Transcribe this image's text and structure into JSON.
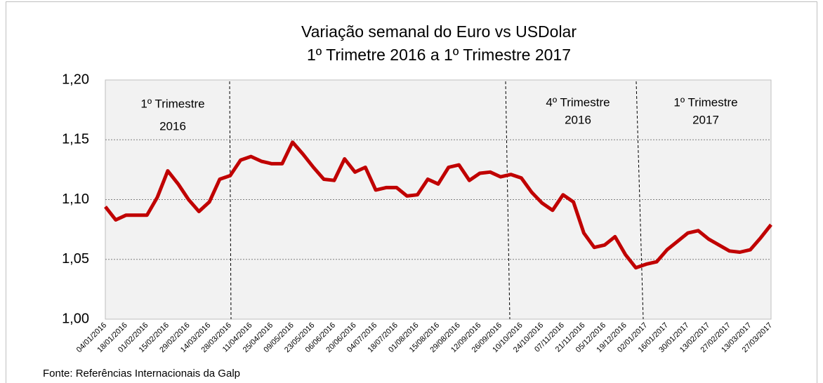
{
  "chart_data": {
    "type": "line",
    "title": "Variação semanal do Euro vs USDolar",
    "subtitle": "1º Trimetre 2016 a 1º Trimestre 2017",
    "categories": [
      "04/01/2016",
      null,
      "18/01/2016",
      null,
      "01/02/2016",
      null,
      "15/02/2016",
      null,
      "29/02/2016",
      null,
      "14/03/2016",
      null,
      "28/03/2016",
      null,
      "11/04/2016",
      null,
      "25/04/2016",
      null,
      "09/05/2016",
      null,
      "23/05/2016",
      null,
      "06/06/2016",
      null,
      "20/06/2016",
      null,
      "04/07/2016",
      null,
      "18/07/2016",
      null,
      "01/08/2016",
      null,
      "15/08/2016",
      null,
      "29/08/2016",
      null,
      "12/09/2016",
      null,
      "26/09/2016",
      null,
      "10/10/2016",
      null,
      "24/10/2016",
      null,
      "07/11/2016",
      null,
      "21/11/2016",
      null,
      "05/12/2016",
      null,
      "19/12/2016",
      null,
      "02/01/2017",
      null,
      "16/01/2017",
      null,
      "30/01/2017",
      null,
      "13/02/2017",
      null,
      "27/02/2017",
      null,
      "13/03/2017",
      null,
      "27/03/2017"
    ],
    "values": [
      1.094,
      1.083,
      1.087,
      1.087,
      1.087,
      1.102,
      1.124,
      1.113,
      1.1,
      1.09,
      1.098,
      1.117,
      1.12,
      1.133,
      1.136,
      1.132,
      1.13,
      1.13,
      1.148,
      1.138,
      1.127,
      1.117,
      1.116,
      1.134,
      1.123,
      1.127,
      1.108,
      1.11,
      1.11,
      1.103,
      1.104,
      1.117,
      1.113,
      1.127,
      1.129,
      1.116,
      1.122,
      1.123,
      1.119,
      1.121,
      1.118,
      1.106,
      1.097,
      1.091,
      1.104,
      1.098,
      1.072,
      1.06,
      1.062,
      1.069,
      1.054,
      1.043,
      1.046,
      1.048,
      1.058,
      1.065,
      1.072,
      1.074,
      1.067,
      1.062,
      1.057,
      1.056,
      1.058,
      1.068,
      1.079
    ],
    "color": "#c00000",
    "ylim": [
      1.0,
      1.2
    ],
    "yticks": [
      {
        "value": 1.0,
        "label": "1,00"
      },
      {
        "value": 1.05,
        "label": "1,05"
      },
      {
        "value": 1.1,
        "label": "1,10"
      },
      {
        "value": 1.15,
        "label": "1,15"
      },
      {
        "value": 1.2,
        "label": "1,20"
      }
    ],
    "grid": true,
    "annotations": [
      [
        "1º Trimestre",
        "2016"
      ],
      [
        "4º Trimestre",
        "2016"
      ],
      [
        "1º Trimestre",
        "2017"
      ]
    ],
    "source": "Fonte: Referências Internacionais da Galp"
  }
}
